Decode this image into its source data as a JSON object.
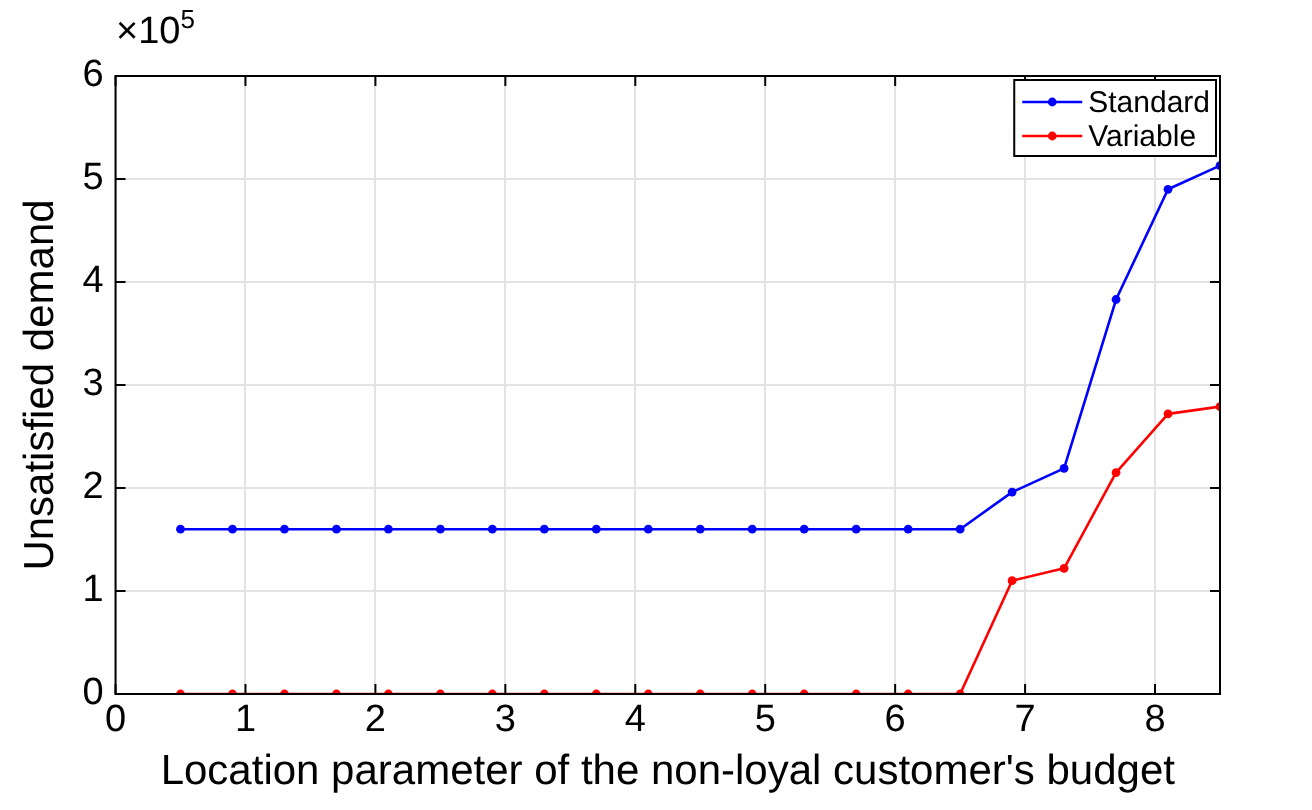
{
  "chart_data": {
    "type": "line",
    "xlabel": "Location parameter of the non-loyal customer's budget",
    "ylabel": "Unsatisfied demand",
    "x": [
      0.5,
      0.9,
      1.3,
      1.7,
      2.1,
      2.5,
      2.9,
      3.3,
      3.7,
      4.1,
      4.5,
      4.9,
      5.3,
      5.7,
      6.1,
      6.5,
      6.9,
      7.3,
      7.7,
      8.1,
      8.5
    ],
    "series": [
      {
        "name": "Standard",
        "color": "#0000ff",
        "values": [
          1.6,
          1.6,
          1.6,
          1.6,
          1.6,
          1.6,
          1.6,
          1.6,
          1.6,
          1.6,
          1.6,
          1.6,
          1.6,
          1.6,
          1.6,
          1.6,
          1.96,
          2.19,
          3.83,
          4.9,
          5.13
        ]
      },
      {
        "name": "Variable",
        "color": "#ff0000",
        "values": [
          0,
          0,
          0,
          0,
          0,
          0,
          0,
          0,
          0,
          0,
          0,
          0,
          0,
          0,
          0,
          0,
          1.1,
          1.22,
          2.15,
          2.72,
          2.79
        ]
      }
    ],
    "xlim": [
      0,
      8.5
    ],
    "xticks": [
      0,
      1,
      2,
      3,
      4,
      5,
      6,
      7,
      8
    ],
    "ylim": [
      0,
      6
    ],
    "yticks": [
      0,
      1,
      2,
      3,
      4,
      5,
      6
    ],
    "annotations": [
      "×10$^{5}$"
    ],
    "grid": true,
    "legend": "top right",
    "marker": "circle",
    "line_style": "solid"
  }
}
